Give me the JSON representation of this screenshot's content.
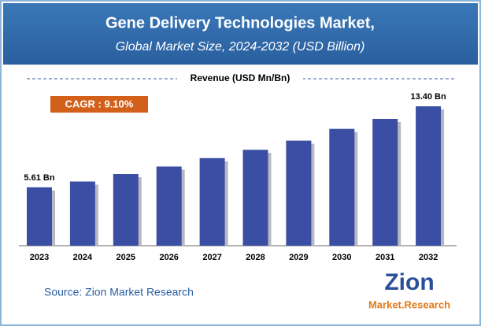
{
  "chart_data": {
    "type": "bar",
    "title": "Gene Delivery Technologies Market,",
    "subtitle": "Global Market Size, 2024-2032 (USD Billion)",
    "legend_label": "Revenue (USD Mn/Bn)",
    "annotation": "CAGR : 9.10%",
    "source": "Source: Zion Market Research",
    "logo": {
      "word": "Zion",
      "tagline": "Market.Research"
    },
    "categories": [
      "2023",
      "2024",
      "2025",
      "2026",
      "2027",
      "2028",
      "2029",
      "2030",
      "2031",
      "2032"
    ],
    "values": [
      5.61,
      6.17,
      6.89,
      7.61,
      8.42,
      9.22,
      10.1,
      11.23,
      12.19,
      13.4
    ],
    "value_labels": [
      "5.61 Bn",
      null,
      null,
      null,
      null,
      null,
      null,
      null,
      null,
      "13.40 Bn"
    ],
    "color": "#3a4fa3"
  }
}
